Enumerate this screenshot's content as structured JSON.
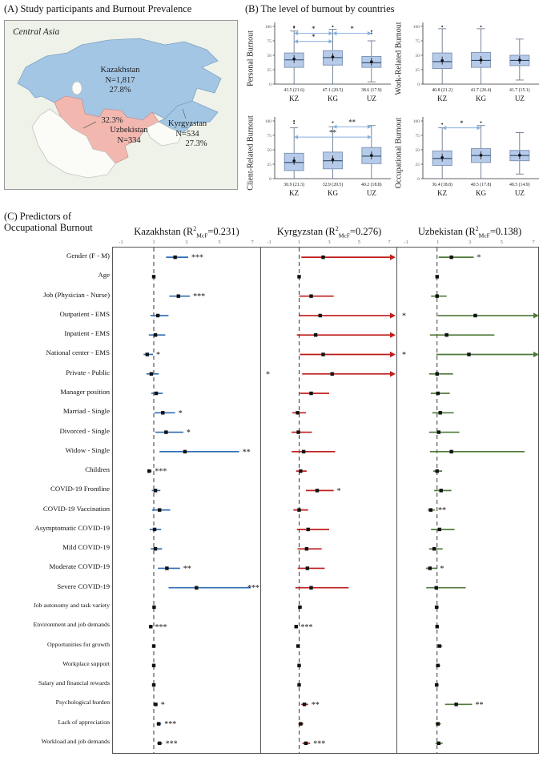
{
  "panelA": {
    "title": "(A) Study participants and Burnout Prevalence",
    "region_label": "Central Asia",
    "countries": [
      {
        "name": "Kazakhstan",
        "n": "N=1,817",
        "pct": "27.8%"
      },
      {
        "name": "Kyrgyzstan",
        "n": "N=534",
        "pct": "27.3%"
      },
      {
        "name": "Uzbekistan",
        "n": "N=334",
        "pct": "32.3%"
      }
    ],
    "colors": {
      "kazakhstan": "#a3c6e5",
      "kyrgyzstan": "#a3c6e5",
      "uzbekistan": "#f2b8b0",
      "other": "#fbfbf8",
      "bg": "#eef2e9",
      "blue_stroke": "#7da2c4",
      "pink_stroke": "#cf948e",
      "other_stroke": "#c4c4bd"
    }
  },
  "panelC": {
    "title_line1": "(C) Predictors of",
    "title_line2": "Occupational Burnout"
  },
  "chart_data": [
    {
      "type": "boxplot",
      "title": "(B) The level of burnout by countries",
      "categories": [
        "KZ",
        "KG",
        "UZ"
      ],
      "ylim": [
        0,
        100
      ],
      "yticks": [
        0,
        25,
        50,
        75,
        100
      ],
      "subplots": [
        {
          "ylabel": "Personal Burnout",
          "stats": [
            "43.5 (21.6)",
            "47.1 (20.5)",
            "38.6 (17.9)"
          ],
          "boxes": [
            {
              "lo": 0,
              "q1": 29,
              "med": 42,
              "q3": 54,
              "hi": 92,
              "mean": 43.5,
              "outliers": [
                98,
                100
              ]
            },
            {
              "lo": 0,
              "q1": 33,
              "med": 46,
              "q3": 58,
              "hi": 95,
              "mean": 47.1,
              "outliers": [
                100
              ]
            },
            {
              "lo": 4,
              "q1": 29,
              "med": 37,
              "q3": 48,
              "hi": 75,
              "mean": 38.6,
              "outliers": [
                88,
                92
              ]
            }
          ],
          "annotations": [
            {
              "from": 0,
              "to": 1,
              "y": 88,
              "label": "*"
            },
            {
              "from": 1,
              "to": 2,
              "y": 88,
              "label": "*"
            },
            {
              "from": 0,
              "to": 1,
              "y": 74,
              "label": "*"
            }
          ]
        },
        {
          "ylabel": "Work-Related Burnout",
          "stats": [
            "40.8 (21.2)",
            "41.7 (20.4)",
            "41.7 (15.1)"
          ],
          "boxes": [
            {
              "lo": 0,
              "q1": 27,
              "med": 39,
              "q3": 54,
              "hi": 96,
              "mean": 40.8,
              "outliers": [
                100
              ]
            },
            {
              "lo": 0,
              "q1": 29,
              "med": 41,
              "q3": 55,
              "hi": 96,
              "mean": 41.7,
              "outliers": [
                100
              ]
            },
            {
              "lo": 7,
              "q1": 32,
              "med": 41,
              "q3": 50,
              "hi": 78,
              "mean": 41.7,
              "outliers": []
            }
          ],
          "annotations": []
        },
        {
          "ylabel": "Client-Related Burnout",
          "stats": [
            "30.9 (21.3)",
            "32.9 (20.5)",
            "40.2 (18.8)"
          ],
          "boxes": [
            {
              "lo": 0,
              "q1": 14,
              "med": 28,
              "q3": 44,
              "hi": 88,
              "mean": 30.9,
              "outliers": [
                96,
                100
              ]
            },
            {
              "lo": 0,
              "q1": 17,
              "med": 31,
              "q3": 46,
              "hi": 90,
              "mean": 32.9,
              "outliers": [
                98
              ]
            },
            {
              "lo": 0,
              "q1": 26,
              "med": 39,
              "q3": 54,
              "hi": 92,
              "mean": 40.2,
              "outliers": []
            }
          ],
          "annotations": [
            {
              "from": 1,
              "to": 2,
              "y": 90,
              "label": "**"
            },
            {
              "from": 0,
              "to": 2,
              "y": 72,
              "label": "**"
            }
          ]
        },
        {
          "ylabel": "Occupational Burnout",
          "stats": [
            "36.4 (18.8)",
            "40.5 (17.8)",
            "40.5 (14.9)"
          ],
          "boxes": [
            {
              "lo": 0,
              "q1": 23,
              "med": 35,
              "q3": 48,
              "hi": 88,
              "mean": 36.4,
              "outliers": [
                95
              ]
            },
            {
              "lo": 0,
              "q1": 28,
              "med": 40,
              "q3": 52,
              "hi": 92,
              "mean": 40.5,
              "outliers": [
                98
              ]
            },
            {
              "lo": 8,
              "q1": 31,
              "med": 40,
              "q3": 49,
              "hi": 80,
              "mean": 40.5,
              "outliers": []
            }
          ],
          "annotations": [
            {
              "from": 0,
              "to": 1,
              "y": 88,
              "label": "*"
            }
          ]
        }
      ]
    },
    {
      "type": "forest",
      "title": "(C) Predictors of Occupational Burnout",
      "xlim": [
        -1,
        7
      ],
      "xticks": [
        -1,
        1,
        3,
        5,
        7
      ],
      "reference_line": 1,
      "row_labels": [
        "Gender (F - M)",
        "Age",
        "Job (Physician - Nurse)",
        "Outpatient - EMS",
        "Inpatient - EMS",
        "National center - EMS",
        "Private - Public",
        "Manager position",
        "Marriad - Single",
        "Divorced - Single",
        "Widow - Single",
        "Children",
        "COVID-19 Frontline",
        "COVID-19 Vaccination",
        "Asymptomatic COVID-19",
        "Mild COVID-19",
        "Moderate COVID-19",
        "Severe COVID-19",
        "Job autonomy and task variety",
        "Environment and job demands",
        "Opportunities for growth",
        "Workplace support",
        "Salary and financial rewards",
        "Psychological burden",
        "Lack of appreciation",
        "Workload and job demands"
      ],
      "columns": [
        {
          "country": "Kazakhstan",
          "r2": "0.231",
          "color": "#2f6db4",
          "rows": [
            {
              "est": 2.3,
              "lo": 1.75,
              "hi": 3.1,
              "sig": "***"
            },
            {
              "est": 1.0,
              "lo": 0.92,
              "hi": 1.08,
              "sig": ""
            },
            {
              "est": 2.5,
              "lo": 1.95,
              "hi": 3.2,
              "sig": "***"
            },
            {
              "est": 1.25,
              "lo": 0.8,
              "hi": 1.9,
              "sig": ""
            },
            {
              "est": 1.1,
              "lo": 0.7,
              "hi": 1.7,
              "sig": ""
            },
            {
              "est": 0.6,
              "lo": 0.38,
              "hi": 0.95,
              "sig": "*"
            },
            {
              "est": 0.85,
              "lo": 0.55,
              "hi": 1.3,
              "sig": ""
            },
            {
              "est": 1.15,
              "lo": 0.85,
              "hi": 1.55,
              "sig": ""
            },
            {
              "est": 1.55,
              "lo": 1.05,
              "hi": 2.3,
              "sig": "*"
            },
            {
              "est": 1.75,
              "lo": 1.1,
              "hi": 2.8,
              "sig": "*"
            },
            {
              "est": 2.9,
              "lo": 1.35,
              "hi": 6.2,
              "sig": "**"
            },
            {
              "est": 0.72,
              "lo": 0.6,
              "hi": 0.87,
              "sig": "***"
            },
            {
              "est": 1.1,
              "lo": 0.88,
              "hi": 1.4,
              "sig": ""
            },
            {
              "est": 1.35,
              "lo": 0.9,
              "hi": 2.0,
              "sig": ""
            },
            {
              "est": 1.05,
              "lo": 0.75,
              "hi": 1.45,
              "sig": ""
            },
            {
              "est": 1.1,
              "lo": 0.82,
              "hi": 1.5,
              "sig": ""
            },
            {
              "est": 1.8,
              "lo": 1.25,
              "hi": 2.6,
              "sig": "**"
            },
            {
              "est": 3.6,
              "lo": 1.9,
              "hi": 6.9,
              "sig": "***"
            },
            {
              "est": 1.02,
              "lo": 0.95,
              "hi": 1.1,
              "sig": ""
            },
            {
              "est": 0.82,
              "lo": 0.77,
              "hi": 0.88,
              "sig": "***"
            },
            {
              "est": 1.0,
              "lo": 0.93,
              "hi": 1.08,
              "sig": ""
            },
            {
              "est": 1.0,
              "lo": 0.93,
              "hi": 1.08,
              "sig": ""
            },
            {
              "est": 1.0,
              "lo": 0.94,
              "hi": 1.07,
              "sig": ""
            },
            {
              "est": 1.12,
              "lo": 1.02,
              "hi": 1.23,
              "sig": "*"
            },
            {
              "est": 1.3,
              "lo": 1.17,
              "hi": 1.45,
              "sig": "***"
            },
            {
              "est": 1.35,
              "lo": 1.2,
              "hi": 1.52,
              "sig": "***"
            }
          ]
        },
        {
          "country": "Kyrgyzstan",
          "r2": "0.276",
          "color": "#bf1d1d",
          "rows": [
            {
              "est": 2.6,
              "lo": 1.15,
              "hi": 99,
              "sig": ""
            },
            {
              "est": 1.0,
              "lo": 0.94,
              "hi": 1.07,
              "sig": ""
            },
            {
              "est": 1.8,
              "lo": 1.0,
              "hi": 3.3,
              "sig": ""
            },
            {
              "est": 2.4,
              "lo": 1.0,
              "hi": 99,
              "sig": ""
            },
            {
              "est": 2.1,
              "lo": 0.85,
              "hi": 99,
              "sig": ""
            },
            {
              "est": 2.6,
              "lo": 1.05,
              "hi": 99,
              "sig": ""
            },
            {
              "est": 3.2,
              "lo": 1.2,
              "hi": 99,
              "sig": "*",
              "sigLeft": true
            },
            {
              "est": 1.8,
              "lo": 1.05,
              "hi": 3.0,
              "sig": ""
            },
            {
              "est": 0.9,
              "lo": 0.55,
              "hi": 1.45,
              "sig": ""
            },
            {
              "est": 0.95,
              "lo": 0.5,
              "hi": 1.85,
              "sig": ""
            },
            {
              "est": 1.3,
              "lo": 0.5,
              "hi": 3.4,
              "sig": ""
            },
            {
              "est": 1.1,
              "lo": 0.8,
              "hi": 1.5,
              "sig": ""
            },
            {
              "est": 2.2,
              "lo": 1.45,
              "hi": 3.3,
              "sig": "*"
            },
            {
              "est": 1.0,
              "lo": 0.62,
              "hi": 1.6,
              "sig": ""
            },
            {
              "est": 1.6,
              "lo": 0.85,
              "hi": 3.0,
              "sig": ""
            },
            {
              "est": 1.5,
              "lo": 0.9,
              "hi": 2.5,
              "sig": ""
            },
            {
              "est": 1.55,
              "lo": 0.9,
              "hi": 2.7,
              "sig": ""
            },
            {
              "est": 1.8,
              "lo": 0.75,
              "hi": 4.3,
              "sig": ""
            },
            {
              "est": 1.05,
              "lo": 0.94,
              "hi": 1.18,
              "sig": ""
            },
            {
              "est": 0.8,
              "lo": 0.72,
              "hi": 0.89,
              "sig": "***"
            },
            {
              "est": 0.93,
              "lo": 0.85,
              "hi": 1.02,
              "sig": ""
            },
            {
              "est": 1.0,
              "lo": 0.92,
              "hi": 1.1,
              "sig": ""
            },
            {
              "est": 1.0,
              "lo": 0.93,
              "hi": 1.08,
              "sig": ""
            },
            {
              "est": 1.35,
              "lo": 1.14,
              "hi": 1.6,
              "sig": "**"
            },
            {
              "est": 1.1,
              "lo": 0.95,
              "hi": 1.28,
              "sig": ""
            },
            {
              "est": 1.45,
              "lo": 1.22,
              "hi": 1.73,
              "sig": "***"
            }
          ]
        },
        {
          "country": "Uzbekistan",
          "r2": "0.138",
          "color": "#4f7a3a",
          "rows": [
            {
              "est": 1.9,
              "lo": 1.1,
              "hi": 3.3,
              "sig": "*"
            },
            {
              "est": 1.0,
              "lo": 0.92,
              "hi": 1.1,
              "sig": ""
            },
            {
              "est": 1.0,
              "lo": 0.62,
              "hi": 1.6,
              "sig": ""
            },
            {
              "est": 3.4,
              "lo": 1.05,
              "hi": 99,
              "sig": "*",
              "sigLeft": true
            },
            {
              "est": 1.6,
              "lo": 0.55,
              "hi": 4.6,
              "sig": ""
            },
            {
              "est": 3.0,
              "lo": 0.95,
              "hi": 99,
              "sig": "*",
              "sigLeft": true
            },
            {
              "est": 1.0,
              "lo": 0.5,
              "hi": 2.0,
              "sig": ""
            },
            {
              "est": 1.05,
              "lo": 0.6,
              "hi": 1.8,
              "sig": ""
            },
            {
              "est": 1.2,
              "lo": 0.7,
              "hi": 2.05,
              "sig": ""
            },
            {
              "est": 1.1,
              "lo": 0.5,
              "hi": 2.4,
              "sig": ""
            },
            {
              "est": 1.9,
              "lo": 0.55,
              "hi": 6.5,
              "sig": ""
            },
            {
              "est": 1.0,
              "lo": 0.76,
              "hi": 1.32,
              "sig": ""
            },
            {
              "est": 1.25,
              "lo": 0.82,
              "hi": 1.9,
              "sig": ""
            },
            {
              "est": 0.6,
              "lo": 0.42,
              "hi": 0.86,
              "sig": "**"
            },
            {
              "est": 1.15,
              "lo": 0.62,
              "hi": 2.1,
              "sig": ""
            },
            {
              "est": 0.82,
              "lo": 0.5,
              "hi": 1.35,
              "sig": ""
            },
            {
              "est": 0.55,
              "lo": 0.3,
              "hi": 0.98,
              "sig": "*"
            },
            {
              "est": 0.95,
              "lo": 0.32,
              "hi": 2.8,
              "sig": ""
            },
            {
              "est": 0.97,
              "lo": 0.86,
              "hi": 1.1,
              "sig": ""
            },
            {
              "est": 1.0,
              "lo": 0.91,
              "hi": 1.1,
              "sig": ""
            },
            {
              "est": 1.15,
              "lo": 1.0,
              "hi": 1.33,
              "sig": ""
            },
            {
              "est": 1.05,
              "lo": 0.92,
              "hi": 1.2,
              "sig": ""
            },
            {
              "est": 0.97,
              "lo": 0.86,
              "hi": 1.1,
              "sig": ""
            },
            {
              "est": 2.2,
              "lo": 1.5,
              "hi": 3.2,
              "sig": "**"
            },
            {
              "est": 1.05,
              "lo": 0.9,
              "hi": 1.25,
              "sig": ""
            },
            {
              "est": 1.1,
              "lo": 0.9,
              "hi": 1.35,
              "sig": ""
            }
          ]
        }
      ]
    }
  ]
}
